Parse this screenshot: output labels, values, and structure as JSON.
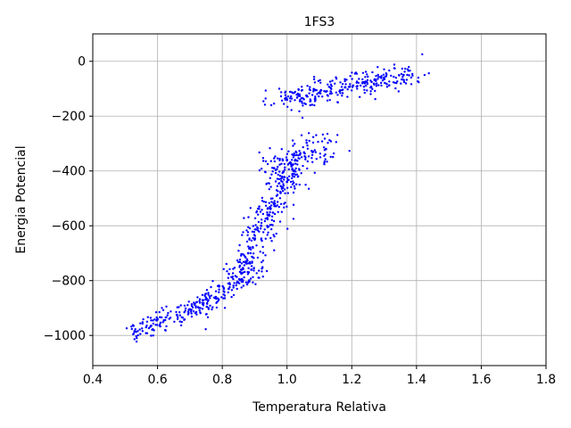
{
  "chart_data": {
    "type": "scatter",
    "title": "1FS3",
    "xlabel": "Temperatura Relativa",
    "ylabel": "Energia Potencial",
    "xlim": [
      0.4,
      1.8
    ],
    "ylim": [
      -1110,
      100
    ],
    "xticks": [
      0.4,
      0.6,
      0.8,
      1.0,
      1.2,
      1.4,
      1.6,
      1.8
    ],
    "xtick_labels": [
      "0.4",
      "0.6",
      "0.8",
      "1.0",
      "1.2",
      "1.4",
      "1.6",
      "1.8"
    ],
    "yticks": [
      -1000,
      -800,
      -600,
      -400,
      -200,
      0
    ],
    "ytick_labels": [
      "−1000",
      "−800",
      "−600",
      "−400",
      "−200",
      "0"
    ],
    "grid": true,
    "marker_color": "#0000ff",
    "series": [
      {
        "clusters": [
          {
            "x": [
              0.53,
              0.58,
              0.62,
              0.66,
              0.7,
              0.74
            ],
            "y": [
              -985,
              -965,
              -945,
              -925,
              -905,
              -885
            ]
          },
          {
            "x": [
              0.74,
              0.78,
              0.82,
              0.86,
              0.89
            ],
            "y": [
              -885,
              -860,
              -830,
              -795,
              -760
            ]
          },
          {
            "x": [
              0.86,
              0.88,
              0.9,
              0.92,
              0.94,
              0.96,
              0.98,
              1.0,
              1.02
            ],
            "y": [
              -760,
              -700,
              -650,
              -600,
              -560,
              -520,
              -480,
              -440,
              -400
            ]
          },
          {
            "x": [
              0.96,
              1.0,
              1.04,
              1.08,
              1.12
            ],
            "y": [
              -390,
              -360,
              -340,
              -330,
              -320
            ]
          },
          {
            "x": [
              1.0,
              1.06,
              1.12,
              1.18,
              1.24,
              1.3,
              1.36
            ],
            "y": [
              -140,
              -125,
              -110,
              -95,
              -80,
              -65,
              -50
            ]
          }
        ]
      }
    ]
  }
}
